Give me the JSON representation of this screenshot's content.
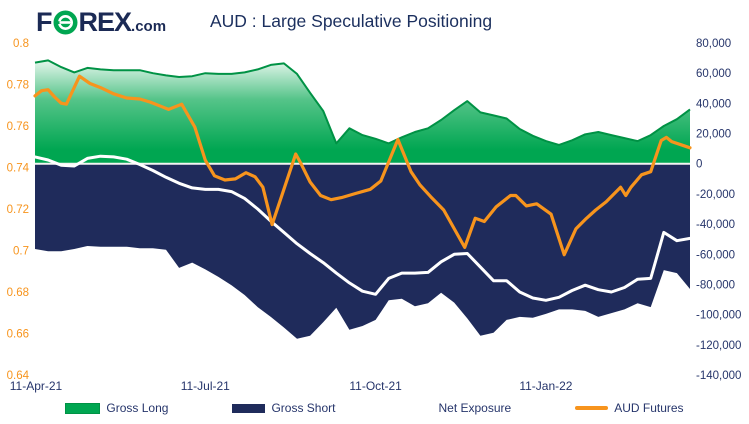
{
  "header": {
    "logo_f": "F",
    "logo_rex": "REX",
    "logo_tld": ".com",
    "title": "AUD : Large Speculative Positioning"
  },
  "colors": {
    "navy_area": "#1F2B5B",
    "green_area": "#00A651",
    "green_edge": "#009245",
    "orange": "#F7941D",
    "white_line": "#FFFFFF",
    "axis_text_navy": "#26356B",
    "axis_text_orange": "#F7941D"
  },
  "axes": {
    "left_labels": [
      "0.8",
      "0.78",
      "0.76",
      "0.74",
      "0.72",
      "0.7",
      "0.68",
      "0.66",
      "0.64"
    ],
    "left_values": [
      0.8,
      0.78,
      0.76,
      0.74,
      0.72,
      0.7,
      0.68,
      0.66,
      0.64
    ],
    "right_labels": [
      "80,000",
      "60,000",
      "40,000",
      "20,000",
      "0",
      "-20,000",
      "-40,000",
      "-60,000",
      "-80,000",
      "-100,000",
      "-120,000",
      "-140,000"
    ],
    "right_values": [
      80000,
      60000,
      40000,
      20000,
      0,
      -20000,
      -40000,
      -60000,
      -80000,
      -100000,
      -120000,
      -140000
    ],
    "x_labels": [
      "11-Apr-21",
      "11-Jul-21",
      "11-Oct-21",
      "11-Jan-22"
    ],
    "x_weeks": [
      0,
      13,
      26,
      39
    ]
  },
  "legend": [
    {
      "label": "Gross Long",
      "swatch": "green-area-swatch"
    },
    {
      "label": "Gross Short",
      "swatch": "navy-area-swatch"
    },
    {
      "label": "Net Exposure",
      "swatch": "white-line-swatch"
    },
    {
      "label": "AUD Futures",
      "swatch": "orange-line-swatch"
    }
  ],
  "chart_data": {
    "type": "combo",
    "title": "AUD : Large Speculative Positioning",
    "x_unit": "weeks from 11-Apr-21",
    "x_tick_labels": [
      "11-Apr-21",
      "11-Jul-21",
      "11-Oct-21",
      "11-Jan-22"
    ],
    "left_axis_range": [
      0.64,
      0.8
    ],
    "right_axis_range": [
      -140000,
      80000
    ],
    "grid": "baseline-only",
    "legend_position": "bottom",
    "series": [
      {
        "name": "Gross Long",
        "type": "area",
        "axis": "right",
        "values": [
          67000,
          68500,
          64000,
          60500,
          63500,
          62500,
          62000,
          62000,
          62000,
          60000,
          58500,
          57500,
          58000,
          60000,
          59500,
          59500,
          60500,
          62500,
          65500,
          66500,
          59500,
          47000,
          35000,
          13500,
          23500,
          19000,
          16500,
          13500,
          17500,
          21000,
          23500,
          29000,
          35500,
          41500,
          34000,
          32000,
          30000,
          23000,
          18500,
          15000,
          12500,
          15500,
          19500,
          21000,
          19000,
          17000,
          15000,
          19000,
          25000,
          29500,
          36000
        ]
      },
      {
        "name": "Gross Short",
        "type": "area",
        "axis": "right",
        "values": [
          -56500,
          -58000,
          -58000,
          -56500,
          -54500,
          -55000,
          -55000,
          -55000,
          -56000,
          -56000,
          -57000,
          -69000,
          -65500,
          -70000,
          -75000,
          -80500,
          -87000,
          -95000,
          -101500,
          -108500,
          -116000,
          -114000,
          -105000,
          -95500,
          -110000,
          -107500,
          -103500,
          -90500,
          -89500,
          -94500,
          -92500,
          -85500,
          -92000,
          -102500,
          -114000,
          -112000,
          -103500,
          -101500,
          -102000,
          -99500,
          -96500,
          -96500,
          -97500,
          -101500,
          -99000,
          -96500,
          -92500,
          -95000,
          -70500,
          -72500,
          -83000
        ]
      },
      {
        "name": "Net Exposure",
        "type": "line",
        "axis": "right",
        "values": [
          4500,
          2500,
          -1000,
          -1500,
          3500,
          5000,
          4500,
          3000,
          -500,
          -4500,
          -9000,
          -13000,
          -16000,
          -17000,
          -17000,
          -18500,
          -23000,
          -30000,
          -38000,
          -45500,
          -53000,
          -59500,
          -65500,
          -72500,
          -79000,
          -84500,
          -86500,
          -76000,
          -72500,
          -72500,
          -72000,
          -65000,
          -60000,
          -59500,
          -68500,
          -77500,
          -77500,
          -85000,
          -89000,
          -90500,
          -88500,
          -84000,
          -80500,
          -83500,
          -85000,
          -82000,
          -76500,
          -76000,
          -45500,
          -51000,
          -49500
        ]
      },
      {
        "name": "AUD Futures",
        "type": "line",
        "axis": "left",
        "points": [
          [
            0,
            0.7745
          ],
          [
            0.5,
            0.777
          ],
          [
            1,
            0.7775
          ],
          [
            1.5,
            0.774
          ],
          [
            2,
            0.771
          ],
          [
            2.4,
            0.7705
          ],
          [
            3.4,
            0.784
          ],
          [
            4.2,
            0.7805
          ],
          [
            5,
            0.7785
          ],
          [
            6,
            0.7755
          ],
          [
            7,
            0.7735
          ],
          [
            8,
            0.773
          ],
          [
            8.8,
            0.7715
          ],
          [
            9.8,
            0.769
          ],
          [
            10.2,
            0.768
          ],
          [
            11.2,
            0.7705
          ],
          [
            12.2,
            0.7595
          ],
          [
            13,
            0.7435
          ],
          [
            13.7,
            0.736
          ],
          [
            14.5,
            0.734
          ],
          [
            15.3,
            0.7345
          ],
          [
            16.1,
            0.7375
          ],
          [
            16.8,
            0.7355
          ],
          [
            17.4,
            0.7305
          ],
          [
            18.1,
            0.7125
          ],
          [
            19.9,
            0.7465
          ],
          [
            20.3,
            0.742
          ],
          [
            21,
            0.733
          ],
          [
            21.8,
            0.7265
          ],
          [
            22.6,
            0.7245
          ],
          [
            23.4,
            0.7255
          ],
          [
            24.5,
            0.7275
          ],
          [
            25.6,
            0.7295
          ],
          [
            26.4,
            0.7335
          ],
          [
            27.7,
            0.7535
          ],
          [
            28.7,
            0.738
          ],
          [
            29.4,
            0.7315
          ],
          [
            30.2,
            0.726
          ],
          [
            31.2,
            0.7195
          ],
          [
            32.8,
            0.7015
          ],
          [
            33.6,
            0.7155
          ],
          [
            34.3,
            0.714
          ],
          [
            35.2,
            0.721
          ],
          [
            36.3,
            0.7265
          ],
          [
            36.7,
            0.7265
          ],
          [
            37.5,
            0.7215
          ],
          [
            38.3,
            0.7225
          ],
          [
            39.4,
            0.7175
          ],
          [
            40.4,
            0.698
          ],
          [
            41.3,
            0.7105
          ],
          [
            42.1,
            0.7155
          ],
          [
            42.8,
            0.7195
          ],
          [
            43.6,
            0.7235
          ],
          [
            44.7,
            0.7305
          ],
          [
            45.1,
            0.7265
          ],
          [
            45.5,
            0.7305
          ],
          [
            46.3,
            0.7365
          ],
          [
            47,
            0.738
          ],
          [
            47.8,
            0.753
          ],
          [
            48.2,
            0.7545
          ],
          [
            48.6,
            0.7525
          ],
          [
            49.3,
            0.751
          ],
          [
            50,
            0.7495
          ]
        ]
      }
    ]
  }
}
